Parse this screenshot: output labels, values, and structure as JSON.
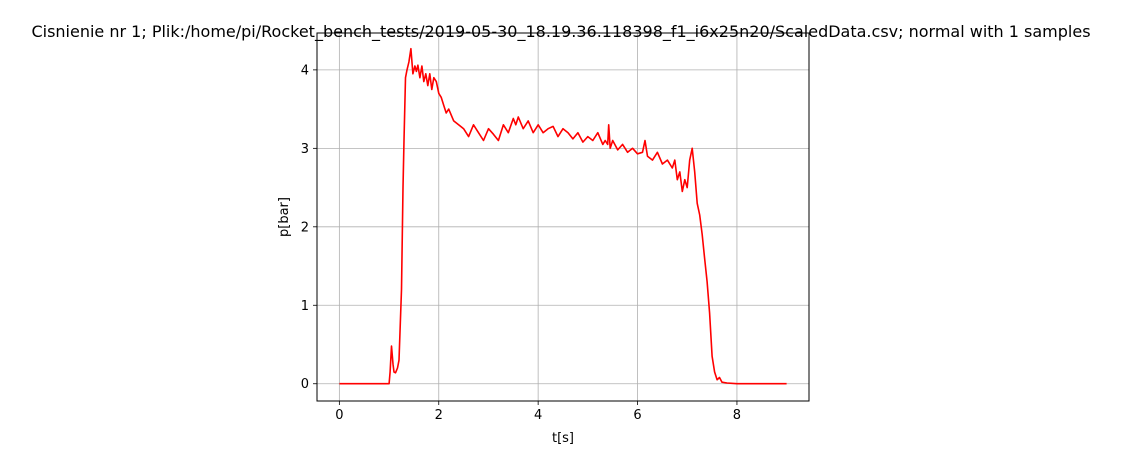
{
  "chart_data": {
    "type": "line",
    "title": "Cisnienie nr 1; Plik:/home/pi/Rocket_bench_tests/2019-05-30_18.19.36.118398_f1_i6x25n20/ScaledData.csv; normal with 1 samples",
    "xlabel": "t[s]",
    "ylabel": "p[bar]",
    "xlim": [
      -0.45,
      9.45
    ],
    "ylim": [
      -0.22,
      4.47
    ],
    "xticks": [
      0,
      2,
      4,
      6,
      8
    ],
    "yticks": [
      0,
      1,
      2,
      3,
      4
    ],
    "grid": true,
    "series": [
      {
        "color": "#ff0000",
        "x": [
          0.0,
          0.5,
          1.0,
          1.02,
          1.05,
          1.08,
          1.1,
          1.13,
          1.17,
          1.2,
          1.25,
          1.28,
          1.3,
          1.33,
          1.36,
          1.4,
          1.44,
          1.48,
          1.52,
          1.55,
          1.58,
          1.62,
          1.66,
          1.7,
          1.74,
          1.78,
          1.82,
          1.86,
          1.9,
          1.95,
          2.0,
          2.05,
          2.1,
          2.15,
          2.2,
          2.3,
          2.4,
          2.5,
          2.6,
          2.7,
          2.8,
          2.9,
          3.0,
          3.1,
          3.2,
          3.3,
          3.4,
          3.5,
          3.55,
          3.6,
          3.7,
          3.8,
          3.9,
          4.0,
          4.1,
          4.2,
          4.3,
          4.4,
          4.5,
          4.6,
          4.7,
          4.8,
          4.9,
          5.0,
          5.1,
          5.2,
          5.3,
          5.35,
          5.4,
          5.42,
          5.45,
          5.5,
          5.6,
          5.7,
          5.8,
          5.9,
          6.0,
          6.1,
          6.15,
          6.2,
          6.3,
          6.4,
          6.5,
          6.6,
          6.7,
          6.75,
          6.8,
          6.85,
          6.9,
          6.95,
          7.0,
          7.05,
          7.1,
          7.15,
          7.2,
          7.25,
          7.3,
          7.35,
          7.4,
          7.45,
          7.5,
          7.55,
          7.6,
          7.65,
          7.7,
          7.8,
          8.0,
          8.5,
          9.0
        ],
        "y": [
          0.0,
          0.0,
          0.0,
          0.15,
          0.48,
          0.25,
          0.15,
          0.14,
          0.2,
          0.3,
          1.2,
          2.5,
          3.1,
          3.9,
          4.0,
          4.1,
          4.27,
          3.95,
          4.05,
          3.98,
          4.06,
          3.9,
          4.05,
          3.85,
          3.95,
          3.8,
          3.95,
          3.75,
          3.9,
          3.85,
          3.7,
          3.65,
          3.55,
          3.45,
          3.5,
          3.35,
          3.3,
          3.25,
          3.15,
          3.3,
          3.2,
          3.1,
          3.25,
          3.18,
          3.1,
          3.3,
          3.2,
          3.38,
          3.3,
          3.4,
          3.25,
          3.35,
          3.2,
          3.3,
          3.2,
          3.25,
          3.28,
          3.15,
          3.25,
          3.2,
          3.12,
          3.2,
          3.08,
          3.15,
          3.1,
          3.2,
          3.05,
          3.1,
          3.05,
          3.3,
          3.0,
          3.1,
          2.98,
          3.05,
          2.95,
          3.0,
          2.93,
          2.95,
          3.1,
          2.9,
          2.85,
          2.95,
          2.8,
          2.85,
          2.75,
          2.85,
          2.6,
          2.7,
          2.45,
          2.6,
          2.5,
          2.85,
          3.0,
          2.7,
          2.3,
          2.15,
          1.9,
          1.6,
          1.3,
          0.9,
          0.35,
          0.15,
          0.05,
          0.08,
          0.02,
          0.01,
          0.0,
          0.0,
          0.0
        ]
      }
    ]
  }
}
